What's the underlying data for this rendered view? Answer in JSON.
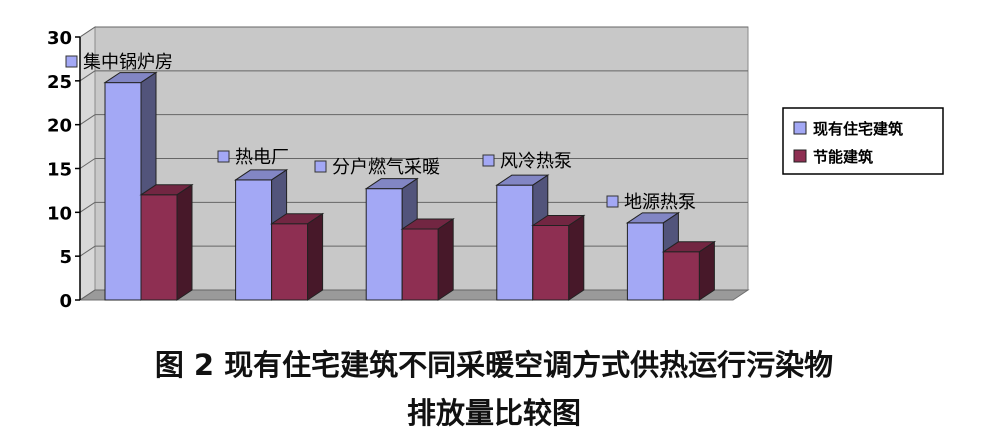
{
  "chart_data": {
    "type": "bar",
    "categories": [
      "集中锅炉房",
      "热电厂",
      "分户燃气采暖",
      "风冷热泵",
      "地源热泵"
    ],
    "series": [
      {
        "name": "现有住宅建筑",
        "values": [
          24.8,
          13.7,
          12.7,
          13.1,
          8.8
        ],
        "color": "#a3a8f5"
      },
      {
        "name": "节能建筑",
        "values": [
          12.0,
          8.7,
          8.1,
          8.5,
          5.5
        ],
        "color": "#8e2f52"
      }
    ],
    "ylim": [
      0,
      30
    ],
    "yticks": [
      "0",
      "5",
      "10",
      "15",
      "20",
      "25",
      "30"
    ],
    "grid": true,
    "legend_position": "right",
    "caption_line1": "图 2  现有住宅建筑不同采暖空调方式供热运行污染物",
    "caption_line2": "排放量比较图"
  }
}
